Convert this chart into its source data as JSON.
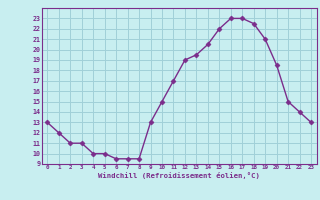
{
  "x": [
    0,
    1,
    2,
    3,
    4,
    5,
    6,
    7,
    8,
    9,
    10,
    11,
    12,
    13,
    14,
    15,
    16,
    17,
    18,
    19,
    20,
    21,
    22,
    23
  ],
  "y": [
    13,
    12,
    11,
    11,
    10,
    10,
    9.5,
    9.5,
    9.5,
    13,
    15,
    17,
    19,
    19.5,
    20.5,
    22,
    23,
    23,
    22.5,
    21,
    18.5,
    15,
    14,
    13
  ],
  "line_color": "#7b2d8b",
  "marker": "D",
  "marker_size": 2.5,
  "bg_color": "#c8eef0",
  "grid_color": "#a0d0d8",
  "xlabel": "Windchill (Refroidissement éolien,°C)",
  "xlabel_color": "#7b2d8b",
  "tick_color": "#7b2d8b",
  "ylim": [
    9,
    24
  ],
  "xlim": [
    -0.5,
    23.5
  ],
  "yticks": [
    9,
    10,
    11,
    12,
    13,
    14,
    15,
    16,
    17,
    18,
    19,
    20,
    21,
    22,
    23
  ],
  "xticks": [
    0,
    1,
    2,
    3,
    4,
    5,
    6,
    7,
    8,
    9,
    10,
    11,
    12,
    13,
    14,
    15,
    16,
    17,
    18,
    19,
    20,
    21,
    22,
    23
  ]
}
